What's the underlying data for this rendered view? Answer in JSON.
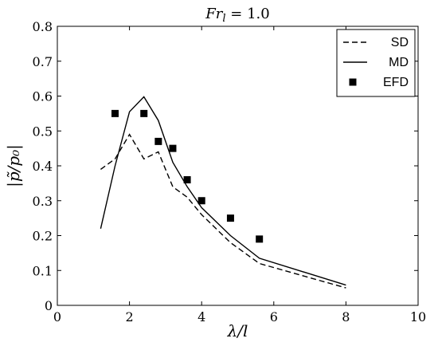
{
  "chart_data": {
    "type": "line",
    "title": "Fr_l = 1.0",
    "xlabel": "λ/l",
    "ylabel": "|p̃/p₀|",
    "xlim": [
      0,
      10
    ],
    "ylim": [
      0,
      0.8
    ],
    "xticks": [
      0,
      2,
      4,
      6,
      8,
      10
    ],
    "yticks": [
      0,
      0.1,
      0.2,
      0.3,
      0.4,
      0.5,
      0.6,
      0.7,
      0.8
    ],
    "grid": false,
    "legend_position": "top-right",
    "series": [
      {
        "name": "SD",
        "style": "dashed",
        "color": "#000000",
        "x": [
          1.2,
          1.6,
          2.0,
          2.4,
          2.8,
          3.2,
          3.6,
          4.0,
          4.8,
          5.6,
          8.0
        ],
        "y": [
          0.39,
          0.42,
          0.49,
          0.42,
          0.44,
          0.34,
          0.31,
          0.26,
          0.18,
          0.12,
          0.05
        ]
      },
      {
        "name": "MD",
        "style": "solid",
        "color": "#000000",
        "x": [
          1.2,
          1.6,
          2.0,
          2.4,
          2.8,
          3.2,
          3.6,
          4.0,
          4.8,
          5.6,
          8.0
        ],
        "y": [
          0.22,
          0.4,
          0.555,
          0.598,
          0.53,
          0.41,
          0.34,
          0.28,
          0.2,
          0.135,
          0.058
        ]
      },
      {
        "name": "EFD",
        "style": "marker-square",
        "color": "#000000",
        "x": [
          1.6,
          2.4,
          2.8,
          3.2,
          3.6,
          4.0,
          4.8,
          5.6
        ],
        "y": [
          0.55,
          0.55,
          0.47,
          0.45,
          0.36,
          0.3,
          0.25,
          0.19
        ]
      }
    ]
  }
}
